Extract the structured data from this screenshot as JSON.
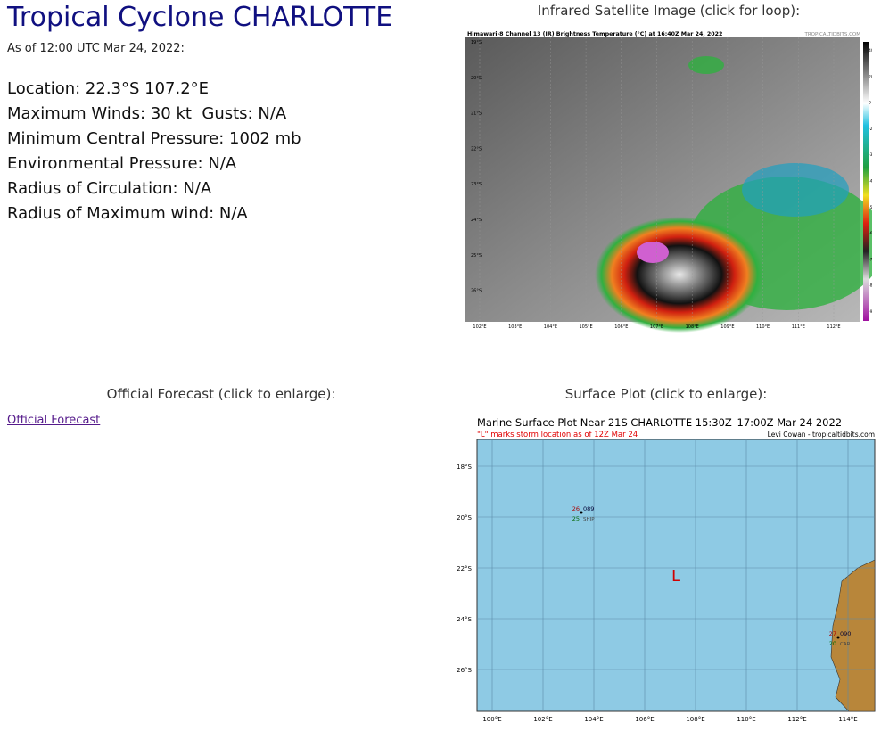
{
  "header": {
    "title": "Tropical Cyclone CHARLOTTE",
    "as_of": "As of 12:00 UTC Mar 24, 2022:"
  },
  "details": [
    "Location: 22.3°S 107.2°E",
    "Maximum Winds: 30 kt  Gusts: N/A",
    "Minimum Central Pressure: 1002 mb",
    "Environmental Pressure: N/A",
    "Radius of Circulation: N/A",
    "Radius of Maximum wind: N/A"
  ],
  "satellite": {
    "heading": "Infrared Satellite Image (click for loop):",
    "image_title": "Himawari-8 Channel 13 (IR) Brightness Temperature (°C) at 16:40Z Mar 24, 2022",
    "credit": "TROPICALTIDBITS.COM",
    "lat_labels": [
      "19°S",
      "20°S",
      "21°S",
      "22°S",
      "23°S",
      "24°S",
      "25°S",
      "26°S"
    ],
    "lon_labels": [
      "102°E",
      "103°E",
      "104°E",
      "105°E",
      "106°E",
      "107°E",
      "108°E",
      "109°E",
      "110°E",
      "111°E",
      "112°E"
    ],
    "colorbar_labels": [
      "40",
      "20",
      "0",
      "-20",
      "-30",
      "-40",
      "-50",
      "-60",
      "-70",
      "-80",
      "-90"
    ]
  },
  "forecast": {
    "heading": "Official Forecast (click to enlarge):",
    "link": "Official Forecast"
  },
  "surface": {
    "heading": "Surface Plot (click to enlarge):",
    "title": "Marine Surface Plot Near 21S CHARLOTTE 15:30Z–17:00Z Mar 24 2022",
    "subtitle": "\"L\" marks storm location as of 12Z Mar 24",
    "credit": "Levi Cowan - tropicaltidbits.com",
    "lat_labels": [
      "18°S",
      "20°S",
      "22°S",
      "24°S",
      "26°S"
    ],
    "lon_labels": [
      "100°E",
      "102°E",
      "104°E",
      "106°E",
      "108°E",
      "110°E",
      "112°E",
      "114°E"
    ],
    "storm_marker": "L",
    "stations": [
      {
        "temperature": "26",
        "pressure": "089",
        "dewpoint": "25",
        "id": "SHIP"
      },
      {
        "temperature": "27",
        "pressure": "090",
        "dewpoint": "20",
        "id": "CAR"
      }
    ]
  }
}
